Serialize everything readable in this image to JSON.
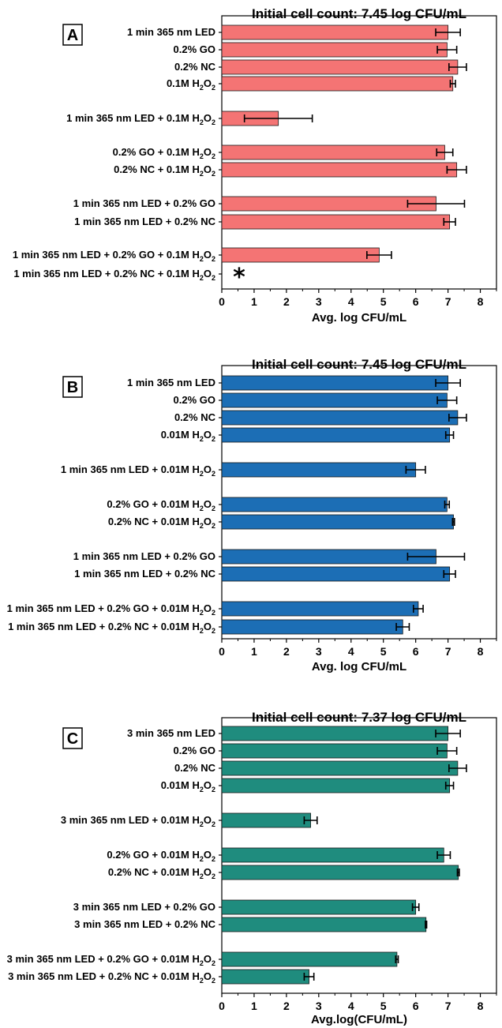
{
  "chart_data": [
    {
      "type": "bar",
      "orientation": "horizontal",
      "panel": "A",
      "title": "Initial cell count: 7.45 log CFU/mL",
      "xlabel": "Avg. log CFU/mL",
      "xlim": [
        0,
        8.5
      ],
      "xticks": [
        "0",
        "1",
        "2",
        "3",
        "4",
        "5",
        "6",
        "7",
        "8"
      ],
      "color": "#f47474",
      "categories": [
        [
          {
            "t": "1 min 365 nm LED"
          }
        ],
        [
          {
            "t": "0.2% GO"
          }
        ],
        [
          {
            "t": "0.2% NC"
          }
        ],
        [
          {
            "t": "0.1M H"
          },
          {
            "t": "2",
            "sub": true
          },
          {
            "t": "O"
          },
          {
            "t": "2",
            "sub": true
          }
        ],
        [
          {
            "t": "1 min 365 nm LED + 0.1M H"
          },
          {
            "t": "2",
            "sub": true
          },
          {
            "t": "O"
          },
          {
            "t": "2",
            "sub": true
          }
        ],
        [
          {
            "t": "0.2% GO + 0.1M H"
          },
          {
            "t": "2",
            "sub": true
          },
          {
            "t": "O"
          },
          {
            "t": "2",
            "sub": true
          }
        ],
        [
          {
            "t": "0.2% NC + 0.1M H"
          },
          {
            "t": "2",
            "sub": true
          },
          {
            "t": "O"
          },
          {
            "t": "2",
            "sub": true
          }
        ],
        [
          {
            "t": "1 min 365 nm LED + 0.2% GO"
          }
        ],
        [
          {
            "t": "1 min 365 nm LED + 0.2% NC"
          }
        ],
        [
          {
            "t": "1 min 365 nm LED + 0.2% GO + 0.1M H"
          },
          {
            "t": "2",
            "sub": true
          },
          {
            "t": "O"
          },
          {
            "t": "2",
            "sub": true
          }
        ],
        [
          {
            "t": "1 min 365 nm LED + 0.2% NC + 0.1M H"
          },
          {
            "t": "2",
            "sub": true
          },
          {
            "t": "O"
          },
          {
            "t": "2",
            "sub": true
          }
        ]
      ],
      "values": [
        7.0,
        6.97,
        7.3,
        7.15,
        1.75,
        6.9,
        7.27,
        6.63,
        7.05,
        4.87,
        null
      ],
      "errors": [
        0.38,
        0.3,
        0.27,
        0.08,
        1.05,
        0.25,
        0.3,
        0.88,
        0.18,
        0.38,
        null
      ],
      "annotations": [
        "*"
      ]
    },
    {
      "type": "bar",
      "orientation": "horizontal",
      "panel": "B",
      "title": "Initial cell count: 7.45 log CFU/mL",
      "xlabel": "Avg. log CFU/mL",
      "xlim": [
        0,
        8.5
      ],
      "xticks": [
        "0",
        "1",
        "2",
        "3",
        "4",
        "5",
        "6",
        "7",
        "8"
      ],
      "color": "#1c6eb5",
      "categories": [
        [
          {
            "t": "1 min 365 nm LED"
          }
        ],
        [
          {
            "t": "0.2% GO"
          }
        ],
        [
          {
            "t": "0.2% NC"
          }
        ],
        [
          {
            "t": "0.01M H"
          },
          {
            "t": "2",
            "sub": true
          },
          {
            "t": "O"
          },
          {
            "t": "2",
            "sub": true
          }
        ],
        [
          {
            "t": "1 min 365 nm LED + 0.01M H"
          },
          {
            "t": "2",
            "sub": true
          },
          {
            "t": "O"
          },
          {
            "t": "2",
            "sub": true
          }
        ],
        [
          {
            "t": "0.2% GO + 0.01M H"
          },
          {
            "t": "2",
            "sub": true
          },
          {
            "t": "O"
          },
          {
            "t": "2",
            "sub": true
          }
        ],
        [
          {
            "t": "0.2% NC + 0.01M H"
          },
          {
            "t": "2",
            "sub": true
          },
          {
            "t": "O"
          },
          {
            "t": "2",
            "sub": true
          }
        ],
        [
          {
            "t": "1 min 365 nm LED + 0.2% GO"
          }
        ],
        [
          {
            "t": "1 min 365 nm LED + 0.2% NC"
          }
        ],
        [
          {
            "t": "1 min 365 nm LED + 0.2% GO + 0.01M H"
          },
          {
            "t": "2",
            "sub": true
          },
          {
            "t": "O"
          },
          {
            "t": "2",
            "sub": true
          }
        ],
        [
          {
            "t": "1 min 365 nm LED + 0.2% NC + 0.01M H"
          },
          {
            "t": "2",
            "sub": true
          },
          {
            "t": "O"
          },
          {
            "t": "2",
            "sub": true
          }
        ]
      ],
      "values": [
        7.0,
        6.97,
        7.3,
        7.05,
        6.0,
        6.97,
        7.17,
        6.63,
        7.05,
        6.08,
        5.6
      ],
      "errors": [
        0.38,
        0.3,
        0.27,
        0.12,
        0.3,
        0.07,
        0.03,
        0.88,
        0.18,
        0.15,
        0.2
      ],
      "annotations": []
    },
    {
      "type": "bar",
      "orientation": "horizontal",
      "panel": "C",
      "title": "Initial cell count: 7.37 log CFU/mL",
      "xlabel": "Avg.log(CFU/mL)",
      "xlim": [
        0,
        8.5
      ],
      "xticks": [
        "0",
        "1",
        "2",
        "3",
        "4",
        "5",
        "6",
        "7",
        "8"
      ],
      "color": "#1f8c7e",
      "categories": [
        [
          {
            "t": "3 min 365 nm LED"
          }
        ],
        [
          {
            "t": "0.2% GO"
          }
        ],
        [
          {
            "t": "0.2% NC"
          }
        ],
        [
          {
            "t": "0.01M H"
          },
          {
            "t": "2",
            "sub": true
          },
          {
            "t": "O"
          },
          {
            "t": "2",
            "sub": true
          }
        ],
        [
          {
            "t": "3 min 365 nm LED + 0.01M H"
          },
          {
            "t": "2",
            "sub": true
          },
          {
            "t": "O"
          },
          {
            "t": "2",
            "sub": true
          }
        ],
        [
          {
            "t": "0.2% GO + 0.01M H"
          },
          {
            "t": "2",
            "sub": true
          },
          {
            "t": "O"
          },
          {
            "t": "2",
            "sub": true
          }
        ],
        [
          {
            "t": "0.2% NC + 0.01M H"
          },
          {
            "t": "2",
            "sub": true
          },
          {
            "t": "O"
          },
          {
            "t": "2",
            "sub": true
          }
        ],
        [
          {
            "t": "3 min 365 nm LED + 0.2% GO"
          }
        ],
        [
          {
            "t": "3 min 365 nm LED + 0.2% NC"
          }
        ],
        [
          {
            "t": "3 min 365 nm LED + 0.2% GO + 0.01M H"
          },
          {
            "t": "2",
            "sub": true
          },
          {
            "t": "O"
          },
          {
            "t": "2",
            "sub": true
          }
        ],
        [
          {
            "t": "3 min 365 nm LED + 0.2% NC + 0.01M H"
          },
          {
            "t": "2",
            "sub": true
          },
          {
            "t": "O"
          },
          {
            "t": "2",
            "sub": true
          }
        ]
      ],
      "values": [
        7.0,
        6.97,
        7.3,
        7.05,
        2.75,
        6.87,
        7.32,
        6.0,
        6.32,
        5.42,
        2.7
      ],
      "errors": [
        0.38,
        0.3,
        0.27,
        0.12,
        0.2,
        0.2,
        0.03,
        0.1,
        0.02,
        0.04,
        0.15
      ],
      "annotations": []
    }
  ]
}
